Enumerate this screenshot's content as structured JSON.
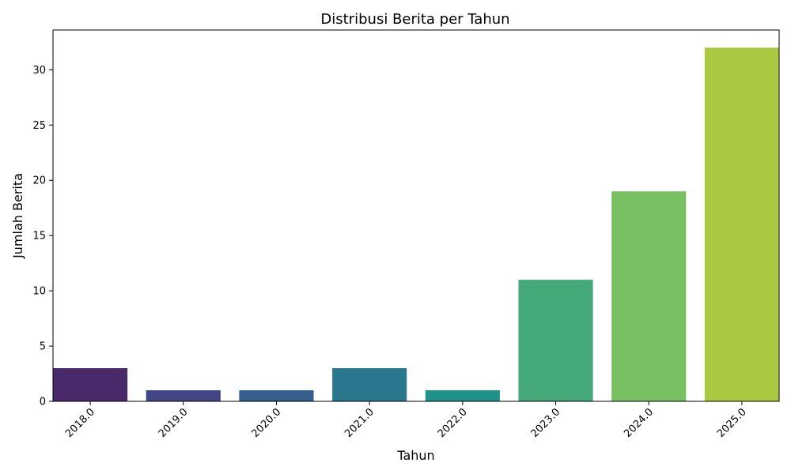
{
  "chart_data": {
    "type": "bar",
    "title": "Distribusi Berita per Tahun",
    "xlabel": "Tahun",
    "ylabel": "Jumlah Berita",
    "categories": [
      "2018.0",
      "2019.0",
      "2020.0",
      "2021.0",
      "2022.0",
      "2023.0",
      "2024.0",
      "2025.0"
    ],
    "values": [
      3,
      1,
      1,
      3,
      1,
      11,
      19,
      32
    ],
    "colors": [
      "#482a6b",
      "#414687",
      "#355f8d",
      "#2a788e",
      "#21918c",
      "#44a878",
      "#79c062",
      "#aac841"
    ],
    "yticks": [
      0,
      5,
      10,
      15,
      20,
      25,
      30
    ],
    "ylim": [
      0,
      33.6
    ],
    "grid": false,
    "legend": "none"
  }
}
